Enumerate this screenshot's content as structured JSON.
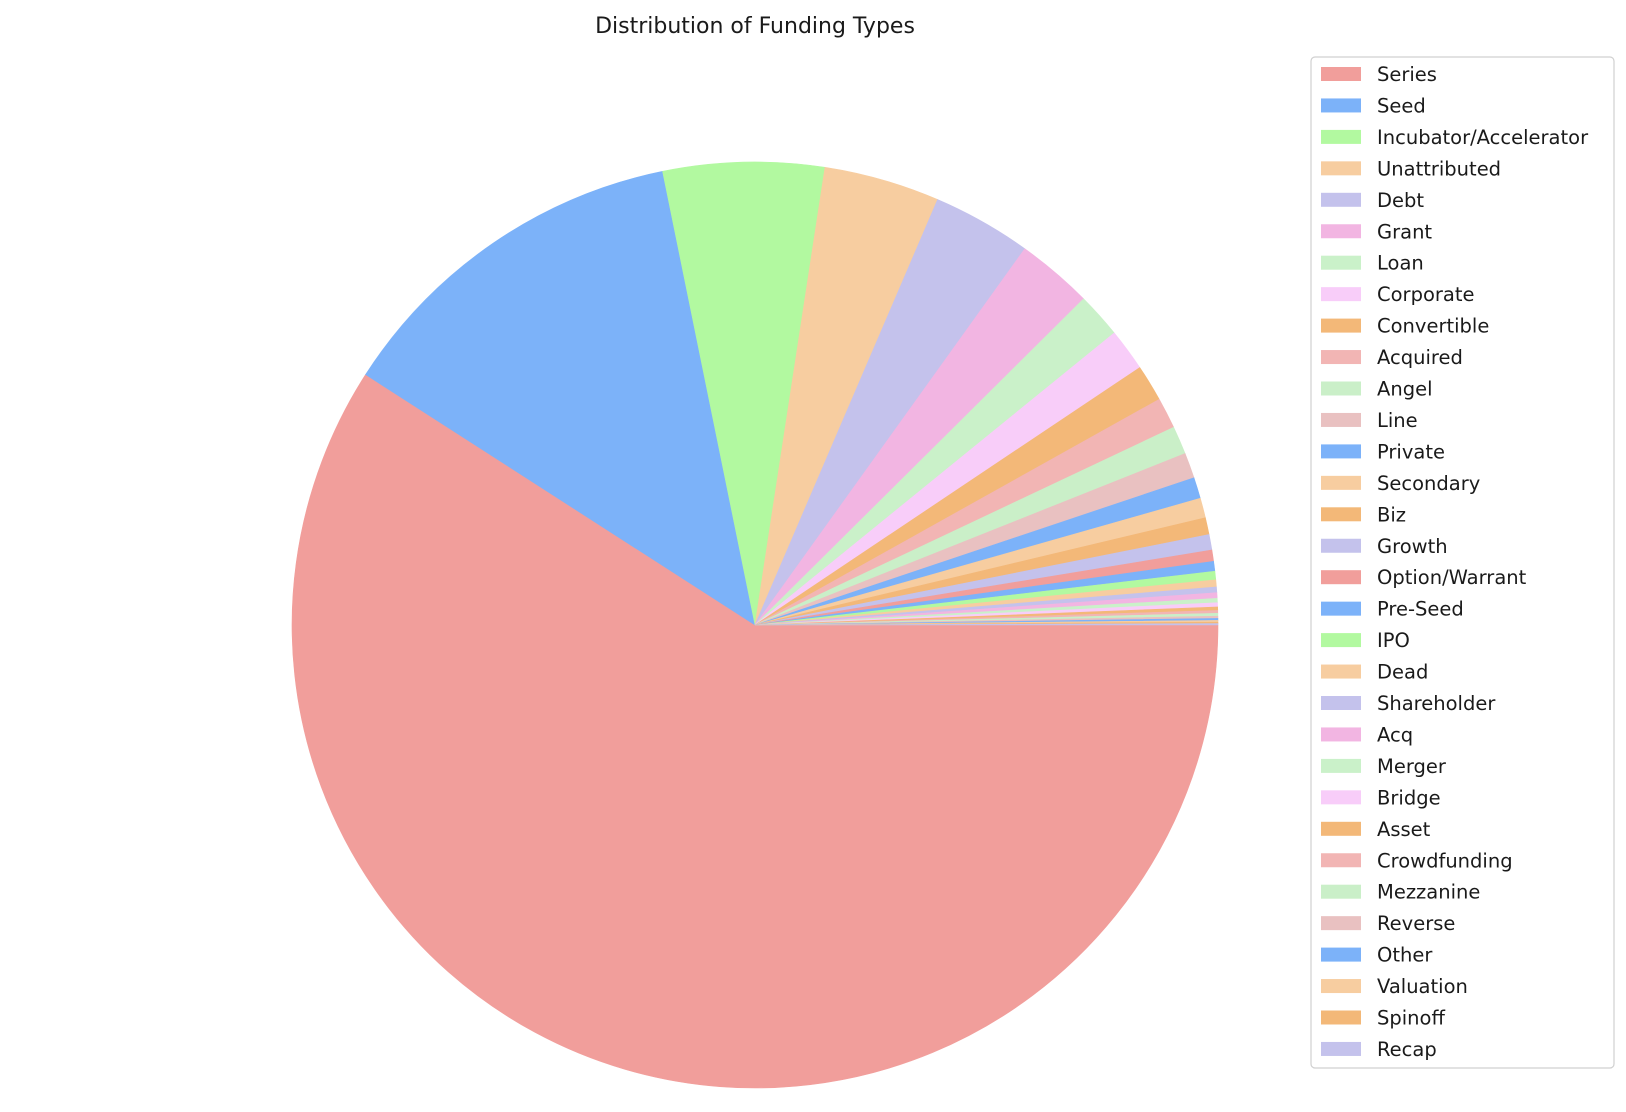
{
  "chart_data": {
    "type": "pie",
    "title": "Distribution of Funding Types",
    "start_angle_deg": 0,
    "direction": "clockwise",
    "legend_position": "right",
    "slices": [
      {
        "label": "Series",
        "value": 60.0,
        "color": "#f19e9b"
      },
      {
        "label": "Seed",
        "value": 12.9,
        "color": "#7cb2f9"
      },
      {
        "label": "Incubator/Accelerator",
        "value": 5.7,
        "color": "#b2f9a0"
      },
      {
        "label": "Unattributed",
        "value": 4.1,
        "color": "#f7cda0"
      },
      {
        "label": "Debt",
        "value": 3.5,
        "color": "#c4c2ec"
      },
      {
        "label": "Grant",
        "value": 2.7,
        "color": "#f2b5e2"
      },
      {
        "label": "Loan",
        "value": 1.6,
        "color": "#caf1c9"
      },
      {
        "label": "Corporate",
        "value": 1.5,
        "color": "#f8cdf9"
      },
      {
        "label": "Convertible",
        "value": 1.3,
        "color": "#f3b878"
      },
      {
        "label": "Acquired",
        "value": 1.1,
        "color": "#f2b5b4"
      },
      {
        "label": "Angel",
        "value": 1.0,
        "color": "#caefc8"
      },
      {
        "label": "Line",
        "value": 0.9,
        "color": "#e9c1c1"
      },
      {
        "label": "Private",
        "value": 0.75,
        "color": "#7cb2f9"
      },
      {
        "label": "Secondary",
        "value": 0.7,
        "color": "#f7cda0"
      },
      {
        "label": "Biz",
        "value": 0.6,
        "color": "#f3b878"
      },
      {
        "label": "Growth",
        "value": 0.55,
        "color": "#c4c2ec"
      },
      {
        "label": "Option/Warrant",
        "value": 0.4,
        "color": "#f19e9b"
      },
      {
        "label": "Pre-Seed",
        "value": 0.35,
        "color": "#7cb2f9"
      },
      {
        "label": "IPO",
        "value": 0.3,
        "color": "#b2f9a0"
      },
      {
        "label": "Dead",
        "value": 0.25,
        "color": "#f7cda0"
      },
      {
        "label": "Shareholder",
        "value": 0.2,
        "color": "#c4c2ec"
      },
      {
        "label": "Acq",
        "value": 0.2,
        "color": "#f2b5e2"
      },
      {
        "label": "Merger",
        "value": 0.15,
        "color": "#caf1c9"
      },
      {
        "label": "Bridge",
        "value": 0.15,
        "color": "#f8cdf9"
      },
      {
        "label": "Asset",
        "value": 0.12,
        "color": "#f3b878"
      },
      {
        "label": "Crowdfunding",
        "value": 0.1,
        "color": "#f2b5b4"
      },
      {
        "label": "Mezzanine",
        "value": 0.1,
        "color": "#caefc8"
      },
      {
        "label": "Reverse",
        "value": 0.08,
        "color": "#e9c1c1"
      },
      {
        "label": "Other",
        "value": 0.07,
        "color": "#7cb2f9"
      },
      {
        "label": "Valuation",
        "value": 0.06,
        "color": "#f7cda0"
      },
      {
        "label": "Spinoff",
        "value": 0.05,
        "color": "#f3b878"
      },
      {
        "label": "Recap",
        "value": 0.05,
        "color": "#c4c2ec"
      }
    ]
  }
}
